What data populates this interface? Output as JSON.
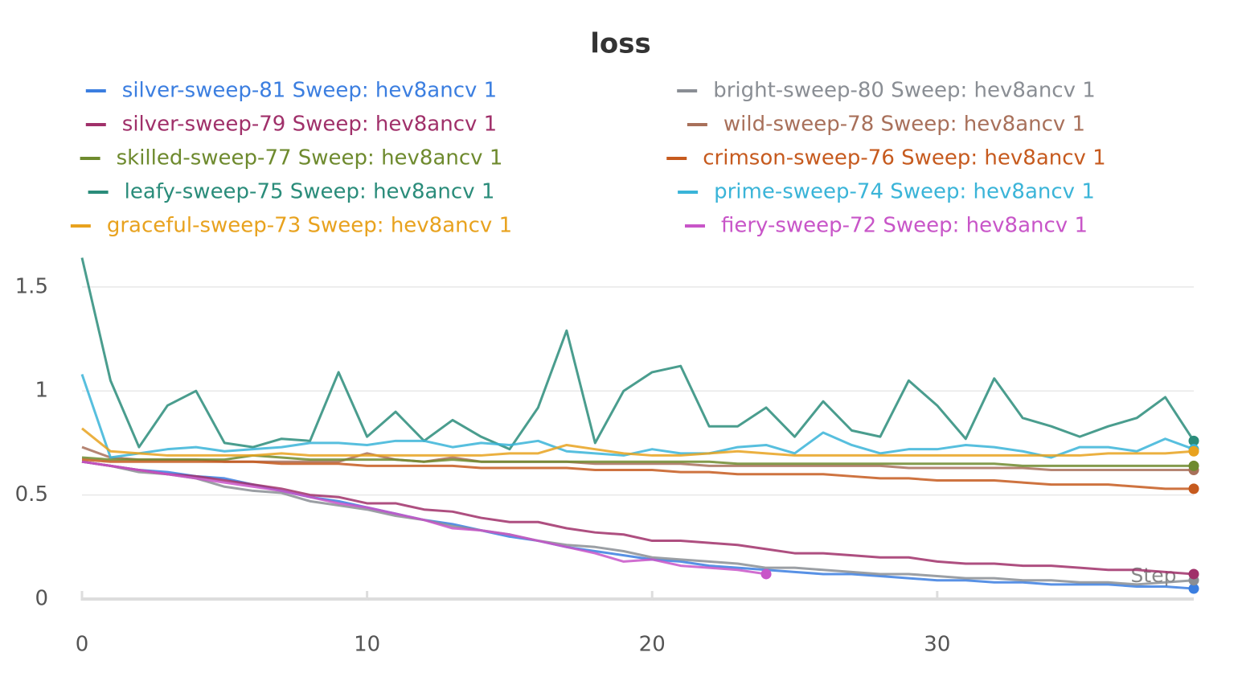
{
  "chart_data": {
    "type": "line",
    "title": "loss",
    "x_label": "Step",
    "x": [
      0,
      1,
      2,
      3,
      4,
      5,
      6,
      7,
      8,
      9,
      10,
      11,
      12,
      13,
      14,
      15,
      16,
      17,
      18,
      19,
      20,
      21,
      22,
      23,
      24,
      25,
      26,
      27,
      28,
      29,
      30,
      31,
      32,
      33,
      34,
      35,
      36,
      37,
      38,
      39
    ],
    "xlim": [
      0,
      39
    ],
    "xticks": [
      0,
      10,
      20,
      30
    ],
    "ylim": [
      0,
      1.65
    ],
    "yticks": [
      0,
      0.5,
      1,
      1.5
    ],
    "grid": true,
    "series": [
      {
        "name": "silver-sweep-81 Sweep: hev8ancv 1",
        "color": "#3b7ee0",
        "values": [
          0.66,
          0.64,
          0.62,
          0.61,
          0.59,
          0.58,
          0.55,
          0.52,
          0.49,
          0.47,
          0.44,
          0.41,
          0.38,
          0.36,
          0.33,
          0.3,
          0.28,
          0.25,
          0.23,
          0.21,
          0.19,
          0.18,
          0.16,
          0.15,
          0.14,
          0.13,
          0.12,
          0.12,
          0.11,
          0.1,
          0.09,
          0.09,
          0.08,
          0.08,
          0.07,
          0.07,
          0.07,
          0.06,
          0.06,
          0.05
        ]
      },
      {
        "name": "bright-sweep-80 Sweep: hev8ancv 1",
        "color": "#8a8e94",
        "values": [
          0.66,
          0.64,
          0.61,
          0.6,
          0.58,
          0.54,
          0.52,
          0.51,
          0.47,
          0.45,
          0.43,
          0.4,
          0.38,
          0.35,
          0.33,
          0.31,
          0.28,
          0.26,
          0.25,
          0.23,
          0.2,
          0.19,
          0.18,
          0.17,
          0.15,
          0.15,
          0.14,
          0.13,
          0.12,
          0.12,
          0.11,
          0.1,
          0.1,
          0.09,
          0.09,
          0.08,
          0.08,
          0.07,
          0.08,
          0.09
        ]
      },
      {
        "name": "silver-sweep-79 Sweep: hev8ancv 1",
        "color": "#a0306a",
        "values": [
          0.66,
          0.64,
          0.62,
          0.6,
          0.59,
          0.57,
          0.55,
          0.53,
          0.5,
          0.49,
          0.46,
          0.46,
          0.43,
          0.42,
          0.39,
          0.37,
          0.37,
          0.34,
          0.32,
          0.31,
          0.28,
          0.28,
          0.27,
          0.26,
          0.24,
          0.22,
          0.22,
          0.21,
          0.2,
          0.2,
          0.18,
          0.17,
          0.17,
          0.16,
          0.16,
          0.15,
          0.14,
          0.14,
          0.13,
          0.12
        ]
      },
      {
        "name": "wild-sweep-78 Sweep: hev8ancv 1",
        "color": "#a8705a",
        "values": [
          0.73,
          0.68,
          0.67,
          0.67,
          0.67,
          0.66,
          0.66,
          0.66,
          0.66,
          0.66,
          0.7,
          0.67,
          0.66,
          0.68,
          0.66,
          0.66,
          0.66,
          0.66,
          0.65,
          0.65,
          0.65,
          0.65,
          0.64,
          0.64,
          0.64,
          0.64,
          0.64,
          0.64,
          0.64,
          0.63,
          0.63,
          0.63,
          0.63,
          0.63,
          0.62,
          0.62,
          0.62,
          0.62,
          0.62,
          0.62
        ]
      },
      {
        "name": "skilled-sweep-77 Sweep: hev8ancv 1",
        "color": "#6e8a2e",
        "values": [
          0.68,
          0.67,
          0.67,
          0.67,
          0.67,
          0.67,
          0.69,
          0.68,
          0.67,
          0.67,
          0.67,
          0.67,
          0.66,
          0.67,
          0.66,
          0.66,
          0.66,
          0.66,
          0.66,
          0.66,
          0.66,
          0.66,
          0.66,
          0.65,
          0.65,
          0.65,
          0.65,
          0.65,
          0.65,
          0.65,
          0.65,
          0.65,
          0.65,
          0.64,
          0.64,
          0.64,
          0.64,
          0.64,
          0.64,
          0.64
        ]
      },
      {
        "name": "crimson-sweep-76 Sweep: hev8ancv 1",
        "color": "#c65a1e",
        "values": [
          0.67,
          0.66,
          0.66,
          0.66,
          0.66,
          0.66,
          0.66,
          0.65,
          0.65,
          0.65,
          0.64,
          0.64,
          0.64,
          0.64,
          0.63,
          0.63,
          0.63,
          0.63,
          0.62,
          0.62,
          0.62,
          0.61,
          0.61,
          0.6,
          0.6,
          0.6,
          0.6,
          0.59,
          0.58,
          0.58,
          0.57,
          0.57,
          0.57,
          0.56,
          0.55,
          0.55,
          0.55,
          0.54,
          0.53,
          0.53
        ]
      },
      {
        "name": "leafy-sweep-75 Sweep: hev8ancv 1",
        "color": "#2a8c7a",
        "values": [
          1.64,
          1.05,
          0.73,
          0.93,
          1.0,
          0.75,
          0.73,
          0.77,
          0.76,
          1.09,
          0.78,
          0.9,
          0.76,
          0.86,
          0.78,
          0.72,
          0.92,
          1.29,
          0.75,
          1.0,
          1.09,
          1.12,
          0.83,
          0.83,
          0.92,
          0.78,
          0.95,
          0.81,
          0.78,
          1.05,
          0.93,
          0.77,
          1.06,
          0.87,
          0.83,
          0.78,
          0.83,
          0.87,
          0.97,
          0.76
        ]
      },
      {
        "name": "prime-sweep-74 Sweep: hev8ancv 1",
        "color": "#3ab4d8",
        "values": [
          1.08,
          0.68,
          0.7,
          0.72,
          0.73,
          0.71,
          0.72,
          0.73,
          0.75,
          0.75,
          0.74,
          0.76,
          0.76,
          0.73,
          0.75,
          0.74,
          0.76,
          0.71,
          0.7,
          0.69,
          0.72,
          0.7,
          0.7,
          0.73,
          0.74,
          0.7,
          0.8,
          0.74,
          0.7,
          0.72,
          0.72,
          0.74,
          0.73,
          0.71,
          0.68,
          0.73,
          0.73,
          0.71,
          0.77,
          0.72
        ]
      },
      {
        "name": "graceful-sweep-73 Sweep: hev8ancv 1",
        "color": "#e8a21e",
        "values": [
          0.82,
          0.71,
          0.7,
          0.69,
          0.69,
          0.69,
          0.69,
          0.7,
          0.69,
          0.69,
          0.69,
          0.69,
          0.69,
          0.69,
          0.69,
          0.7,
          0.7,
          0.74,
          0.72,
          0.7,
          0.69,
          0.69,
          0.7,
          0.71,
          0.7,
          0.69,
          0.69,
          0.69,
          0.69,
          0.69,
          0.69,
          0.69,
          0.69,
          0.69,
          0.69,
          0.69,
          0.7,
          0.7,
          0.7,
          0.71
        ]
      },
      {
        "name": "fiery-sweep-72 Sweep: hev8ancv 1",
        "color": "#c855c8",
        "values": [
          0.66,
          0.64,
          0.62,
          0.6,
          0.58,
          0.56,
          0.54,
          0.52,
          0.49,
          0.46,
          0.44,
          0.41,
          0.38,
          0.34,
          0.33,
          0.31,
          0.28,
          0.25,
          0.22,
          0.18,
          0.19,
          0.16,
          0.15,
          0.14,
          0.12,
          null,
          null,
          null,
          null,
          null,
          null,
          null,
          null,
          null,
          null,
          null,
          null,
          null,
          null,
          null
        ]
      }
    ]
  }
}
